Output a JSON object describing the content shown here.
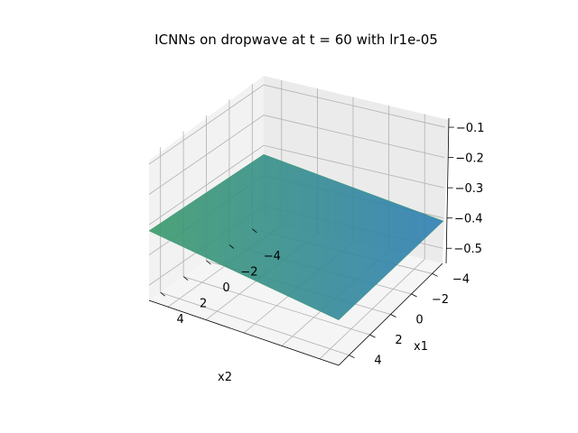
{
  "chart_data": {
    "type": "surface3d",
    "title": "ICNNs on dropwave at t = 60 with lr1e-05",
    "x1label": "x1",
    "x2label": "x2",
    "zlabel": "",
    "x1lim": [
      -5,
      5
    ],
    "x2lim": [
      -5,
      5
    ],
    "zlim": [
      -0.55,
      -0.07
    ],
    "x1ticks": [
      -4,
      -2,
      0,
      2,
      4
    ],
    "x1ticklabels": [
      "−4",
      "−2",
      "0",
      "2",
      "4"
    ],
    "x2ticks": [
      4,
      2,
      0,
      -2,
      -4
    ],
    "x2ticklabels": [
      "4",
      "2",
      "0",
      "−2",
      "−4"
    ],
    "zticks": [
      -0.1,
      -0.2,
      -0.3,
      -0.4,
      -0.5
    ],
    "zticklabels": [
      "−0.1",
      "−0.2",
      "−0.3",
      "−0.4",
      "−0.5"
    ],
    "grid": true,
    "surface_corners": [
      {
        "x1": -5,
        "x2": 5,
        "z": -0.32
      },
      {
        "x1": 5,
        "x2": 5,
        "z": -0.4
      },
      {
        "x1": 5,
        "x2": -5,
        "z": -0.41
      },
      {
        "x1": -5,
        "x2": -5,
        "z": -0.33
      }
    ],
    "surface_colors": [
      "#3b9a6b",
      "#2f7fb5"
    ],
    "pane_color": "#f2f2f2"
  }
}
